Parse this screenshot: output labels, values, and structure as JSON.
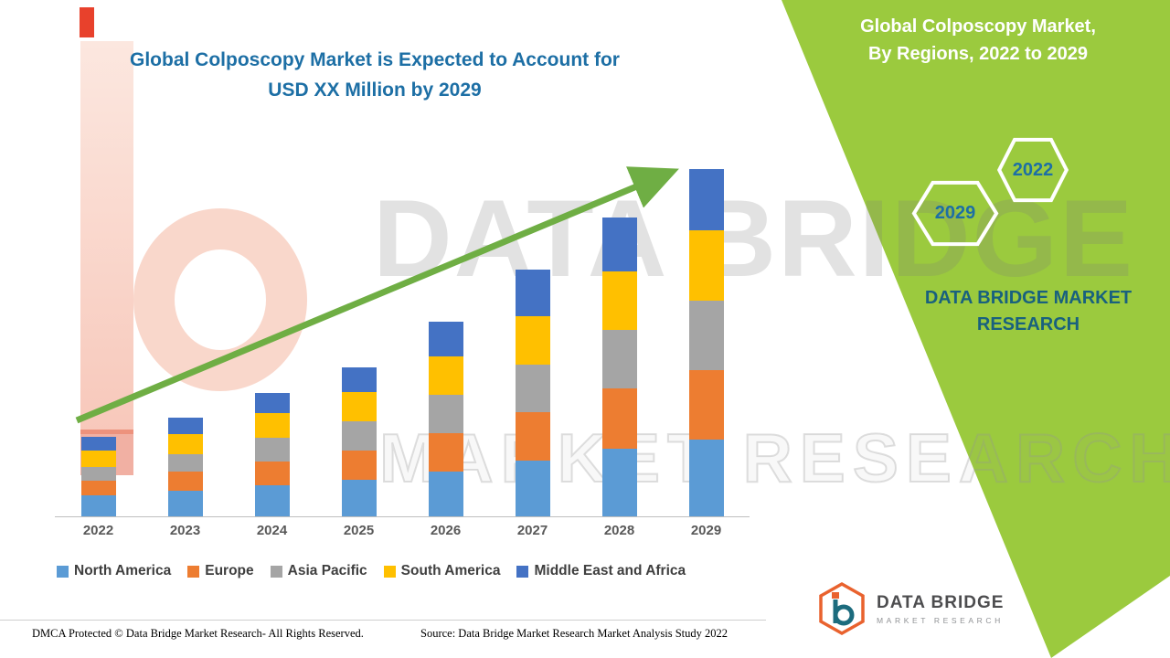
{
  "colors": {
    "green_panel": "#9BCA3E",
    "title_blue": "#1D6FA5",
    "arrow_green": "#6FAE44",
    "hex_year": "#1D6FA5",
    "brand_teal": "#19617E",
    "axis_text": "#595959"
  },
  "left_title": {
    "line1": "Global Colposcopy Market is Expected to Account for",
    "line2": "USD XX Million by 2029"
  },
  "right_panel": {
    "title_line1": "Global Colposcopy Market,",
    "title_line2": "By Regions, 2022 to 2029",
    "hexagon_top": {
      "label": "2022"
    },
    "hexagon_bottom": {
      "label": "2029"
    },
    "brand_line1": "DATA BRIDGE MARKET",
    "brand_line2": "RESEARCH"
  },
  "watermark": {
    "line1": "DATA BRIDGE",
    "line2": "MARKET RESEARCH"
  },
  "footer": {
    "dmca": "DMCA Protected © Data Bridge Market Research- All Rights Reserved.",
    "source": "Source: Data Bridge Market Research Market Analysis Study 2022"
  },
  "logo": {
    "title": "DATA BRIDGE",
    "subtitle": "MARKET RESEARCH"
  },
  "chart_data": {
    "type": "bar",
    "stacked": true,
    "title": "Global Colposcopy Market is Expected to Account for USD XX Million by 2029",
    "subtitle": "Global Colposcopy Market, By Regions, 2022 to 2029",
    "categories": [
      "2022",
      "2023",
      "2024",
      "2025",
      "2026",
      "2027",
      "2028",
      "2029"
    ],
    "series": [
      {
        "name": "North America",
        "color": "#5B9BD5",
        "values": [
          6.0,
          7.5,
          9.0,
          10.5,
          13.0,
          16.0,
          19.5,
          22.0
        ]
      },
      {
        "name": "Europe",
        "color": "#ED7D31",
        "values": [
          4.2,
          5.3,
          6.8,
          8.4,
          11.0,
          14.0,
          17.3,
          20.0
        ]
      },
      {
        "name": "Asia Pacific",
        "color": "#A5A5A5",
        "values": [
          4.0,
          5.2,
          6.8,
          8.4,
          11.0,
          13.6,
          16.8,
          20.0
        ]
      },
      {
        "name": "South America",
        "color": "#FFC000",
        "values": [
          4.7,
          5.8,
          7.3,
          8.4,
          11.0,
          14.0,
          16.9,
          20.5
        ]
      },
      {
        "name": "Middle East and Africa",
        "color": "#4472C4",
        "values": [
          4.1,
          4.7,
          5.8,
          7.3,
          10.0,
          13.5,
          15.5,
          17.5
        ]
      }
    ],
    "xlabel": "",
    "ylabel": "",
    "units": "relative index (y-axis unlabeled; values masked as USD XX Million)",
    "values_are_estimates": true,
    "y_axis_visible": false,
    "grid": false,
    "legend_position": "bottom",
    "trend_arrow": true
  }
}
